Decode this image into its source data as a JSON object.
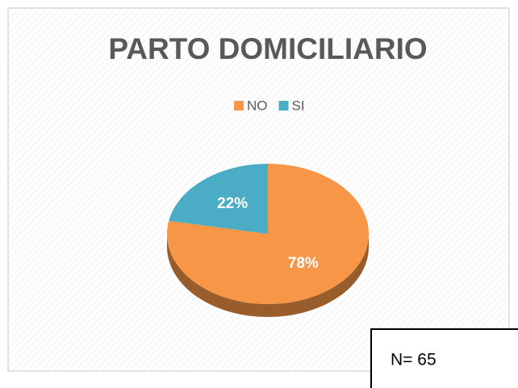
{
  "chart_data": {
    "type": "pie",
    "title": "PARTO DOMICILIARIO",
    "categories": [
      "NO",
      "SI"
    ],
    "values": [
      78,
      22
    ],
    "value_labels": [
      "78%",
      "22%"
    ],
    "colors": [
      "#f79646",
      "#4bacc6"
    ],
    "legend": "top",
    "annotation": "N= 65"
  }
}
